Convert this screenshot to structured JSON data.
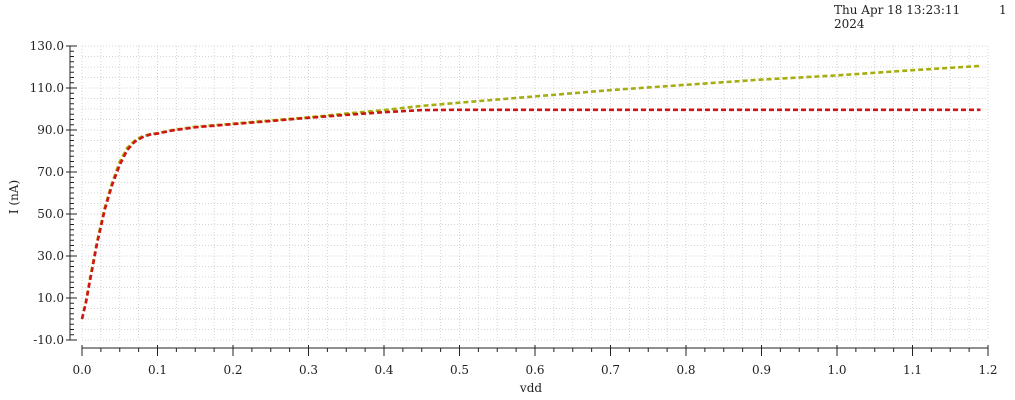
{
  "header": {
    "timestamp": "Thu Apr 18 13:23:11 2024",
    "page_number": "1"
  },
  "chart_data": {
    "type": "line",
    "xlabel": "vdd",
    "ylabel": "I (nA)",
    "xlim": [
      0.0,
      1.2
    ],
    "ylim": [
      -10.0,
      130.0
    ],
    "x_ticks": [
      "0.0",
      "0.1",
      "0.2",
      "0.3",
      "0.4",
      "0.5",
      "0.6",
      "0.7",
      "0.8",
      "0.9",
      "1.0",
      "1.1",
      "1.2"
    ],
    "y_ticks": [
      "-10.0",
      "10.0",
      "30.0",
      "50.0",
      "70.0",
      "90.0",
      "110.0",
      "130.0"
    ],
    "grid": true,
    "series": [
      {
        "color": "#a6ad10",
        "style": "dashed",
        "x": [
          0.0,
          0.005,
          0.01,
          0.02,
          0.03,
          0.04,
          0.05,
          0.06,
          0.07,
          0.08,
          0.09,
          0.1,
          0.12,
          0.15,
          0.2,
          0.25,
          0.3,
          0.35,
          0.4,
          0.45,
          0.5,
          0.6,
          0.7,
          0.8,
          0.9,
          1.0,
          1.1,
          1.19
        ],
        "y": [
          0.0,
          8.0,
          18.0,
          37.0,
          53.0,
          65.0,
          75.0,
          81.5,
          85.0,
          87.0,
          88.0,
          88.5,
          90.0,
          91.5,
          93.0,
          94.5,
          96.0,
          97.8,
          99.5,
          101.5,
          103.0,
          106.0,
          109.0,
          111.5,
          114.0,
          116.0,
          118.5,
          120.5
        ]
      },
      {
        "color": "#d11313",
        "style": "dashed",
        "x": [
          0.0,
          0.005,
          0.01,
          0.02,
          0.03,
          0.04,
          0.05,
          0.06,
          0.07,
          0.08,
          0.09,
          0.1,
          0.12,
          0.15,
          0.2,
          0.25,
          0.3,
          0.35,
          0.4,
          0.45,
          0.5,
          0.6,
          0.7,
          0.8,
          0.9,
          1.0,
          1.1,
          1.19
        ],
        "y": [
          0.0,
          7.5,
          17.0,
          36.0,
          52.0,
          64.0,
          73.5,
          80.5,
          84.5,
          86.5,
          87.8,
          88.3,
          89.8,
          91.3,
          92.8,
          94.3,
          95.8,
          97.2,
          98.5,
          99.5,
          99.6,
          99.6,
          99.6,
          99.6,
          99.6,
          99.6,
          99.6,
          99.6
        ]
      }
    ]
  }
}
